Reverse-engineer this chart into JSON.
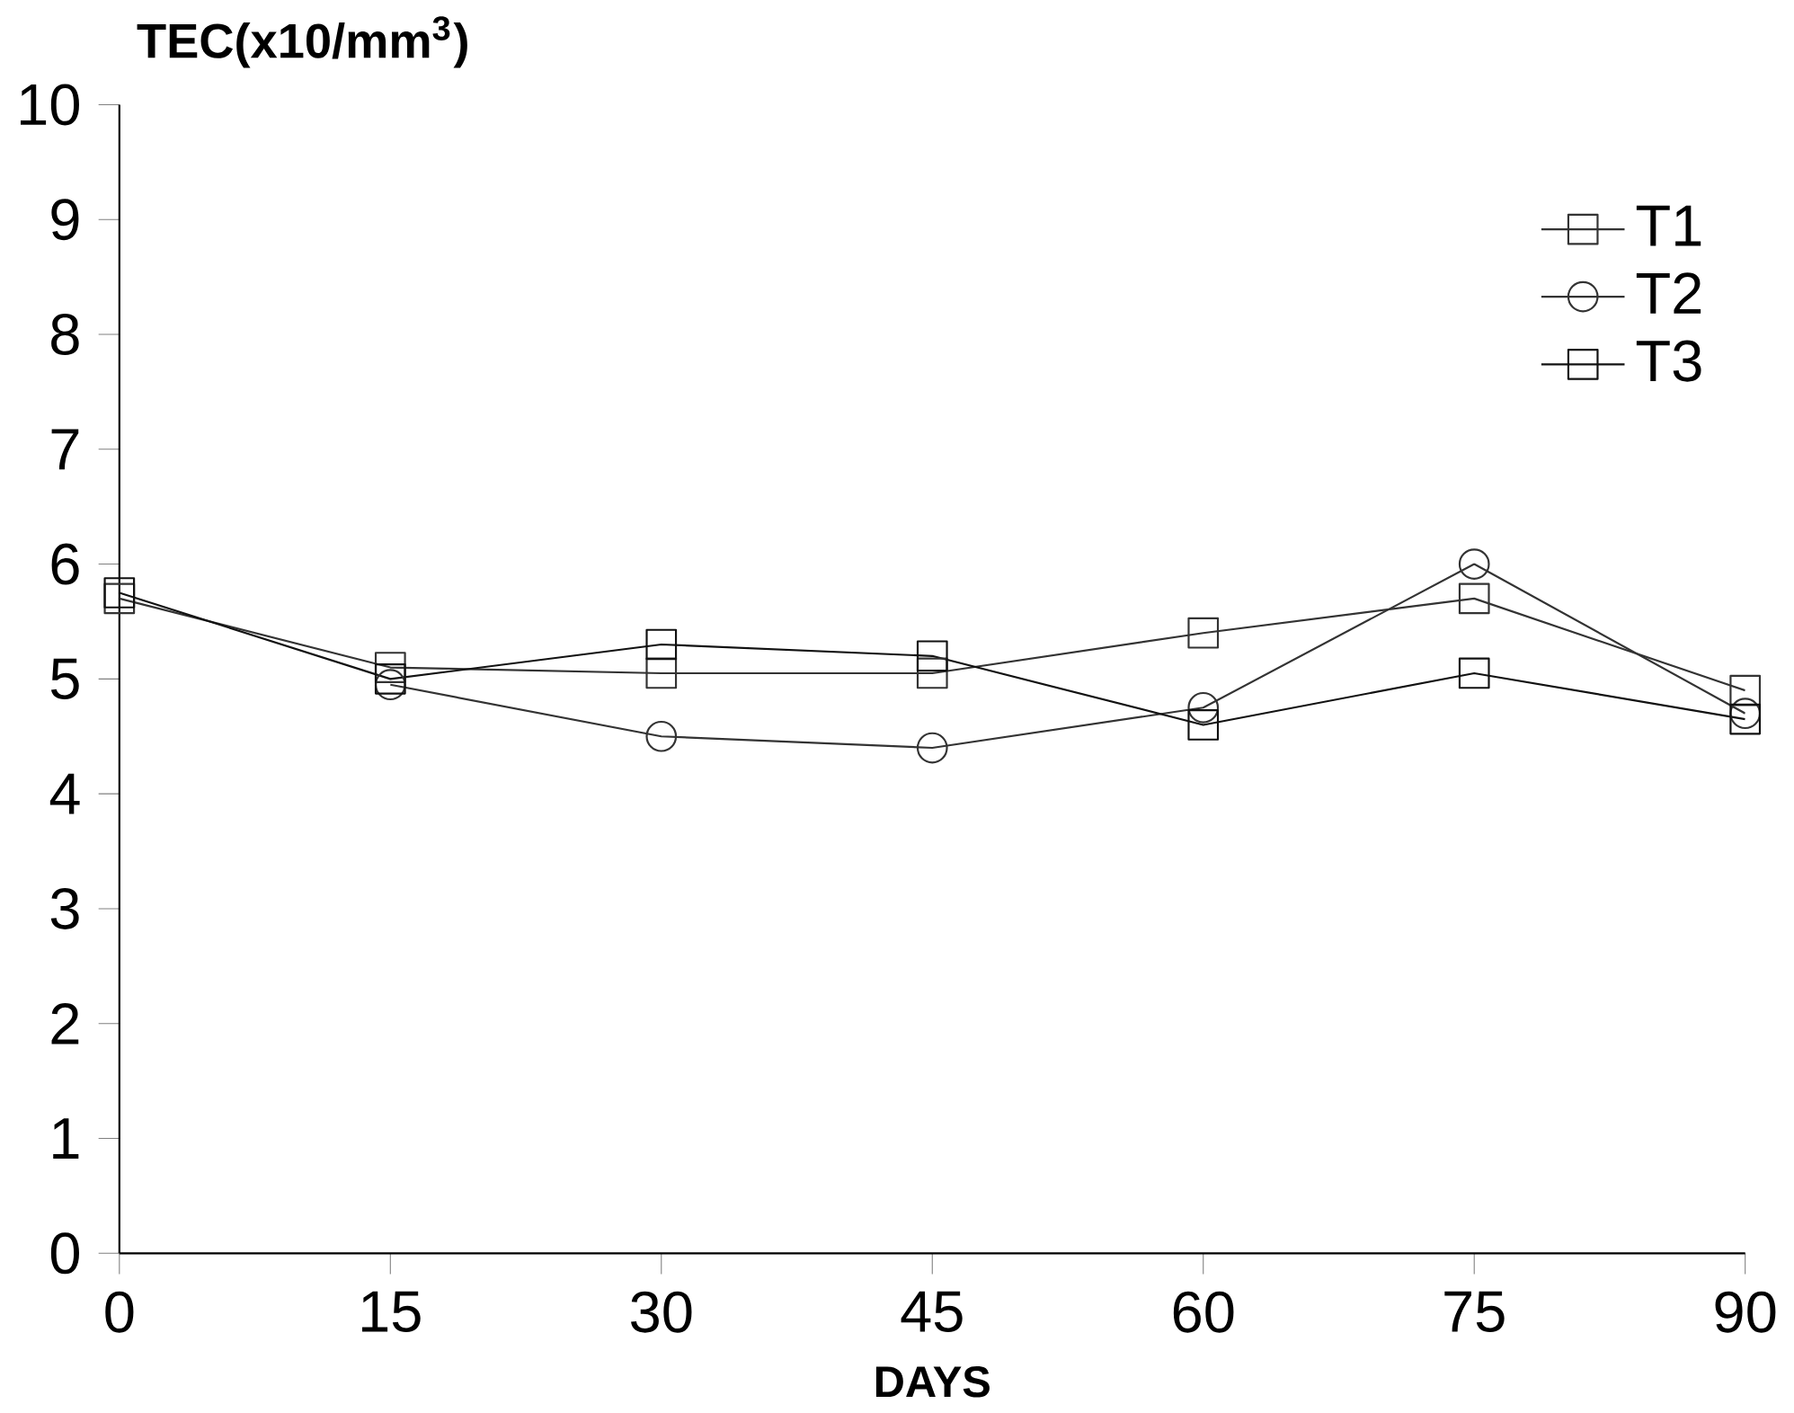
{
  "chart_data": {
    "type": "line",
    "xlabel": "DAYS",
    "ylabel": "TEC(x10/mm$^{3}$)",
    "x": [
      0,
      15,
      30,
      45,
      60,
      75,
      90
    ],
    "series": [
      {
        "name": "T1",
        "color": "#333333",
        "marker": "square",
        "values": [
          5.7,
          5.1,
          5.05,
          5.05,
          5.4,
          5.7,
          4.9
        ]
      },
      {
        "name": "T2",
        "color": "#333333",
        "marker": "circle",
        "values": [
          null,
          4.95,
          4.5,
          4.4,
          4.75,
          6.0,
          4.7
        ]
      },
      {
        "name": "T3",
        "color": "#111111",
        "marker": "square",
        "values": [
          5.75,
          5.0,
          5.3,
          5.2,
          4.6,
          5.05,
          4.65
        ]
      }
    ],
    "xlim": [
      0,
      90
    ],
    "ylim": [
      0,
      10
    ],
    "xticks": [
      0,
      15,
      30,
      45,
      60,
      75,
      90
    ],
    "yticks": [
      0,
      1,
      2,
      3,
      4,
      5,
      6,
      7,
      8,
      9,
      10
    ],
    "grid": false,
    "legend": "top right",
    "line_style": "solid"
  }
}
